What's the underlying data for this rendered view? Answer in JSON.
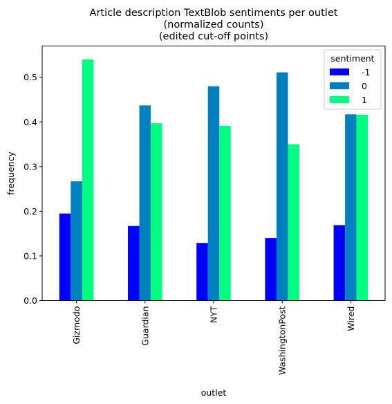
{
  "chart_data": {
    "type": "bar",
    "title_lines": [
      "Article description TextBlob sentiments per outlet",
      "(normalized counts)",
      "(edited cut-off points)"
    ],
    "xlabel": "outlet",
    "ylabel": "frequency",
    "categories": [
      "Gizmodo",
      "Guardian",
      "NYT",
      "WashingtonPost",
      "Wired"
    ],
    "series": [
      {
        "name": "-1",
        "color": "#0000ff",
        "values": [
          0.195,
          0.167,
          0.129,
          0.14,
          0.169
        ]
      },
      {
        "name": "0",
        "color": "#0080bf",
        "values": [
          0.267,
          0.437,
          0.48,
          0.511,
          0.417
        ]
      },
      {
        "name": "1",
        "color": "#00ff80",
        "values": [
          0.54,
          0.397,
          0.391,
          0.35,
          0.416
        ]
      }
    ],
    "ylim": [
      0,
      0.57
    ],
    "yticks": [
      "0.0",
      "0.1",
      "0.2",
      "0.3",
      "0.4",
      "0.5"
    ],
    "legend": {
      "title": "sentiment",
      "placement": "top-right"
    },
    "grid": false
  }
}
